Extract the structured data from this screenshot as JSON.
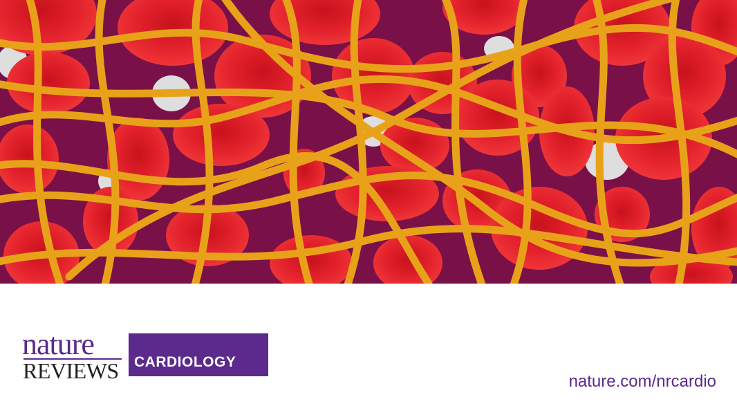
{
  "brand": {
    "nature": "nature",
    "reviews": "REVIEWS",
    "journal": "CARDIOLOGY",
    "url": "nature.com/nrcardio"
  },
  "colors": {
    "background_purple": "#7a1048",
    "red_cell": "#e0202a",
    "red_cell_dark": "#b8141e",
    "fibrin_gold": "#e8a21a",
    "platelet_grey": "#dcdcdc",
    "brand_purple": "#5b2a8c"
  },
  "illustration": {
    "subject": "red blood cells enmeshed in fibrin strands"
  }
}
